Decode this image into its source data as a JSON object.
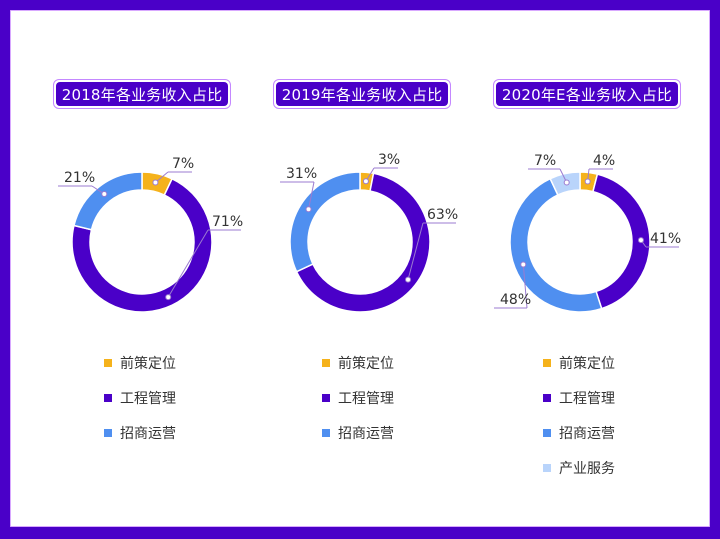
{
  "colors": {
    "frame": "#4a00c8",
    "qianCe": "#f5b21b",
    "gongCheng": "#4a00c8",
    "zhaoShang": "#4f8ff0",
    "chanYe": "#b9d4fb"
  },
  "charts": [
    {
      "title": "2018年各业务收入占比"
    },
    {
      "title": "2019年各业务收入占比"
    },
    {
      "title": "2020年E各业务收入占比"
    }
  ],
  "legend": {
    "item0": "前策定位",
    "item1": "工程管理",
    "item2": "招商运营",
    "item3": "产业服务"
  },
  "labels": {
    "c0": [
      "7%",
      "71%",
      "21%"
    ],
    "c1": [
      "3%",
      "63%",
      "31%"
    ],
    "c2": [
      "4%",
      "41%",
      "48%",
      "7%"
    ]
  },
  "chart_data": [
    {
      "type": "pie",
      "subtype": "donut",
      "title": "2018年各业务收入占比",
      "categories": [
        "前策定位",
        "工程管理",
        "招商运营"
      ],
      "values": [
        7,
        71,
        21
      ],
      "unit": "%",
      "colors": [
        "#f5b21b",
        "#4a00c8",
        "#4f8ff0"
      ],
      "legend_position": "bottom"
    },
    {
      "type": "pie",
      "subtype": "donut",
      "title": "2019年各业务收入占比",
      "categories": [
        "前策定位",
        "工程管理",
        "招商运营"
      ],
      "values": [
        3,
        63,
        31
      ],
      "unit": "%",
      "colors": [
        "#f5b21b",
        "#4a00c8",
        "#4f8ff0"
      ],
      "legend_position": "bottom"
    },
    {
      "type": "pie",
      "subtype": "donut",
      "title": "2020年E各业务收入占比",
      "categories": [
        "前策定位",
        "工程管理",
        "招商运营",
        "产业服务"
      ],
      "values": [
        4,
        41,
        48,
        7
      ],
      "unit": "%",
      "colors": [
        "#f5b21b",
        "#4a00c8",
        "#4f8ff0",
        "#b9d4fb"
      ],
      "legend_position": "bottom"
    }
  ]
}
